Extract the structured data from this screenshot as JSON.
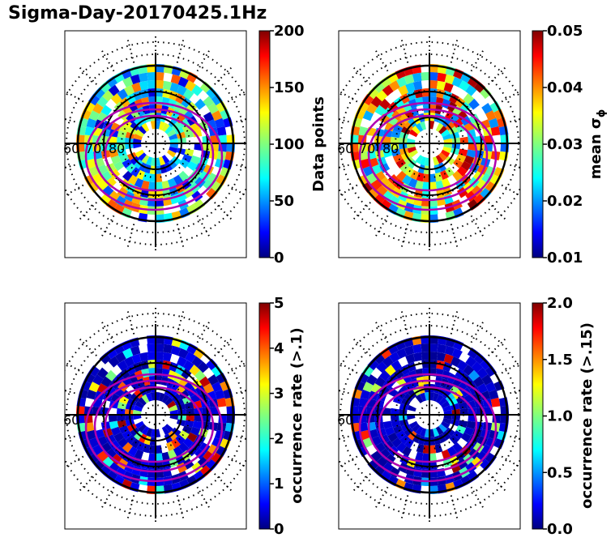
{
  "figure": {
    "title": "Sigma-Day-20170425.1Hz"
  },
  "colormap": "jet",
  "chart_data": [
    {
      "type": "heatmap",
      "projection": "polar",
      "colorbar_label": "Data points",
      "colorbar_ticks": [
        "0",
        "50",
        "100",
        "150",
        "200"
      ],
      "range": [
        0,
        200
      ],
      "lat_labels": [
        "60",
        "70",
        "80"
      ],
      "grid": true,
      "sample_seed": 11
    },
    {
      "type": "heatmap",
      "projection": "polar",
      "colorbar_label": "mean σ",
      "colorbar_label_sub": "ϕ",
      "colorbar_ticks": [
        "0.01",
        "0.02",
        "0.03",
        "0.04",
        "0.05"
      ],
      "range": [
        0.01,
        0.05
      ],
      "lat_labels": [
        "60",
        "70",
        "80"
      ],
      "grid": true,
      "sample_seed": 23
    },
    {
      "type": "heatmap",
      "projection": "polar",
      "colorbar_label": "occurrence rate (>.1)",
      "colorbar_ticks": [
        "0",
        "1",
        "2",
        "3",
        "4",
        "5"
      ],
      "range": [
        0,
        5
      ],
      "lat_labels": [
        "60"
      ],
      "grid": true,
      "sample_seed": 37
    },
    {
      "type": "heatmap",
      "projection": "polar",
      "colorbar_label": "occurrence rate (>.15)",
      "colorbar_ticks": [
        "0.0",
        "0.5",
        "1.0",
        "1.5",
        "2.0"
      ],
      "range": [
        0,
        2
      ],
      "lat_labels": [
        "60"
      ],
      "grid": true,
      "sample_seed": 53
    }
  ]
}
